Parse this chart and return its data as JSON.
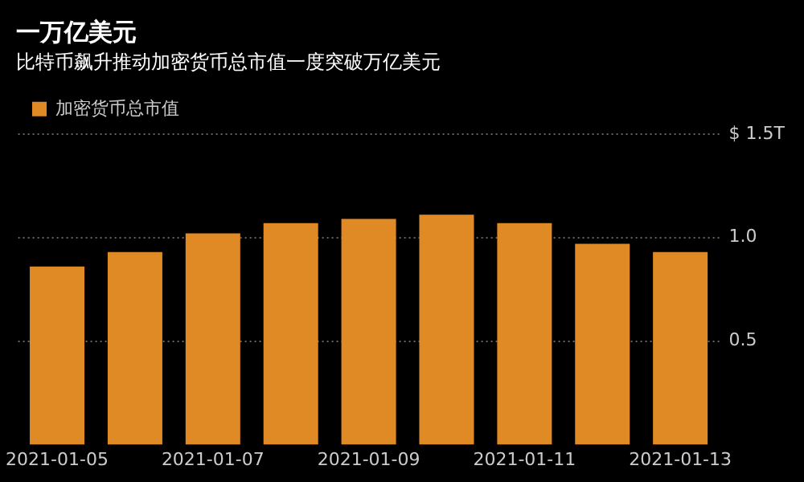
{
  "chart_data": {
    "type": "bar",
    "title": "一万亿美元",
    "subtitle": "比特币飙升推动加密货币总市值一度突破万亿美元",
    "categories": [
      "2021-01-05",
      null,
      "2021-01-07",
      null,
      "2021-01-09",
      null,
      "2021-01-11",
      null,
      "2021-01-13"
    ],
    "series": [
      {
        "name": "加密货币总市值",
        "color": "#e08a25",
        "values": [
          0.86,
          0.93,
          1.02,
          1.07,
          1.09,
          1.11,
          1.07,
          0.97,
          0.93
        ]
      }
    ],
    "ylim": [
      0,
      1.5
    ],
    "yticks": [
      {
        "value": 0.5,
        "label": "0.5"
      },
      {
        "value": 1,
        "label": "1.0"
      },
      {
        "value": 1.5,
        "label": "$ 1.5T"
      }
    ],
    "grid": "y",
    "legend": "top left"
  }
}
